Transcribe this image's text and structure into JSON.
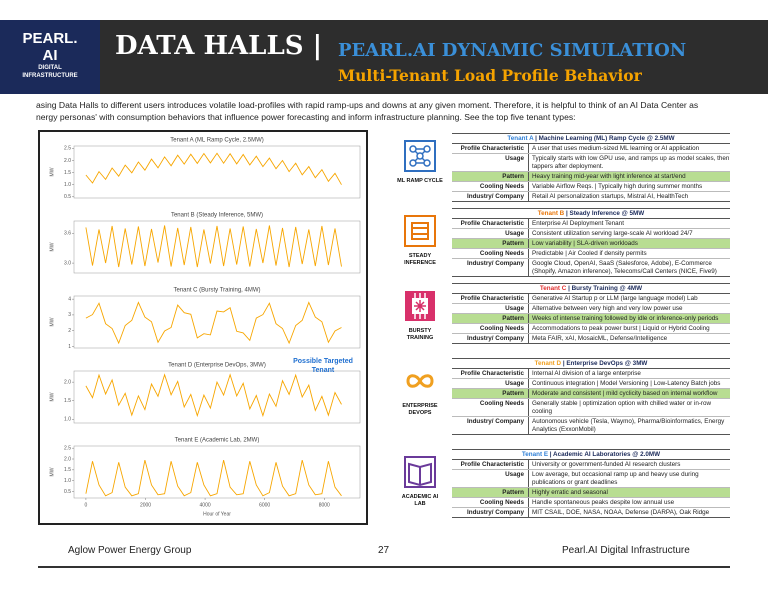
{
  "header": {
    "logo_line1": "PEARL.",
    "logo_line2": "AI",
    "logo_line3": "DIGITAL",
    "logo_line4": "INFRASTRUCTURE",
    "title": "DATA HALLS |",
    "title_right": "PEARL.AI DYNAMIC SIMULATION",
    "subtitle": "Multi-Tenant Load Profile Behavior"
  },
  "intro": [
    "asing Data Halls to different users introduces volatile load-profiles with rapid ramp-ups and downs at any given moment. Therefore, it is helpful to think of an AI Data Center as",
    "nergy personas' with consumption behaviors that influence power forecasting and inform infrastructure planning. See the top five tenant types:"
  ],
  "chart_data": [
    {
      "type": "line",
      "title": "Tenant A (ML Ramp Cycle, 2.5MW)",
      "ylabel": "MW",
      "color": "#f7a600",
      "xlim": [
        -400,
        9200
      ],
      "ylim": [
        0.45,
        2.6
      ],
      "yticks": [
        0.5,
        {
          "value": 1.0,
          "label": "1.0"
        },
        1.5,
        {
          "value": 2.0,
          "label": "2.0"
        },
        2.5
      ],
      "x": [
        0,
        220,
        440,
        660,
        880,
        1100,
        1320,
        1540,
        1760,
        1980,
        2200,
        2420,
        2640,
        2860,
        3080,
        3300,
        3520,
        3740,
        3960,
        4180,
        4400,
        4620,
        4840,
        5060,
        5280,
        5500,
        5720,
        5940,
        6160,
        6380,
        6600,
        6820,
        7040,
        7260,
        7480,
        7700,
        7920,
        8140,
        8360,
        8580
      ],
      "values": [
        1.4,
        1.07,
        1.54,
        1.22,
        1.69,
        1.35,
        1.81,
        1.49,
        1.94,
        1.6,
        2.06,
        1.7,
        2.15,
        1.78,
        2.22,
        1.85,
        2.26,
        1.88,
        2.29,
        1.9,
        2.3,
        1.89,
        2.28,
        1.86,
        2.25,
        1.82,
        2.18,
        1.75,
        2.1,
        1.66,
        2.0,
        1.54,
        1.89,
        1.41,
        1.75,
        1.29,
        1.62,
        1.14,
        1.47,
        1.0
      ]
    },
    {
      "type": "line",
      "title": "Tenant B (Steady Inference, 5MW)",
      "ylabel": "MW",
      "color": "#f7a600",
      "xlim": [
        -400,
        9200
      ],
      "ylim": [
        2.8,
        3.85
      ],
      "yticks": [
        {
          "value": 3.0,
          "label": "3.0"
        },
        3.6
      ],
      "x": [
        0,
        220,
        440,
        660,
        880,
        1100,
        1320,
        1540,
        1760,
        1980,
        2200,
        2420,
        2640,
        2860,
        3080,
        3300,
        3520,
        3740,
        3960,
        4180,
        4400,
        4620,
        4840,
        5060,
        5280,
        5500,
        5720,
        5940,
        6160,
        6380,
        6600,
        6820,
        7040,
        7260,
        7480,
        7700,
        7920,
        8140,
        8360,
        8580
      ],
      "values": [
        3.72,
        2.95,
        3.68,
        3.0,
        3.75,
        2.92,
        3.7,
        2.97,
        3.74,
        2.94,
        3.69,
        3.01,
        3.76,
        2.93,
        3.71,
        2.96,
        3.73,
        2.92,
        3.68,
        2.99,
        3.75,
        2.94,
        3.7,
        2.97,
        3.74,
        2.93,
        3.69,
        3.0,
        3.76,
        2.95,
        3.71,
        2.92,
        3.73,
        2.98,
        3.68,
        2.94,
        3.75,
        2.96,
        3.7,
        2.93
      ]
    },
    {
      "type": "line",
      "title": "Tenant C (Bursty Training, 4MW)",
      "ylabel": "MW",
      "color": "#f7a600",
      "xlim": [
        -400,
        9200
      ],
      "ylim": [
        0.9,
        4.2
      ],
      "yticks": [
        1,
        2,
        3,
        4
      ],
      "x": [
        0,
        220,
        440,
        660,
        880,
        1100,
        1320,
        1540,
        1760,
        1980,
        2200,
        2420,
        2640,
        2860,
        3080,
        3300,
        3520,
        3740,
        3960,
        4180,
        4400,
        4620,
        4840,
        5060,
        5280,
        5500,
        5720,
        5940,
        6160,
        6380,
        6600,
        6820,
        7040,
        7260,
        7480,
        7700,
        7920,
        8140,
        8360,
        8580
      ],
      "values": [
        2.8,
        3.02,
        3.74,
        2.44,
        2.14,
        1.21,
        2.33,
        2.65,
        3.79,
        2.86,
        2.56,
        1.26,
        1.98,
        2.2,
        3.62,
        3.14,
        3.04,
        1.54,
        1.81,
        1.73,
        3.25,
        3.19,
        3.46,
        1.96,
        1.86,
        1.38,
        2.8,
        3.02,
        3.74,
        2.44,
        2.14,
        1.21,
        2.33,
        2.65,
        3.79,
        2.86,
        2.56,
        1.26,
        1.98,
        2.2
      ]
    },
    {
      "type": "line",
      "title": "Tenant D (Enterprise DevOps, 3MW)",
      "ylabel": "MW",
      "color": "#f7a600",
      "annotation": "Possible Targeted Tenant",
      "xlim": [
        -400,
        9200
      ],
      "ylim": [
        0.9,
        2.3
      ],
      "yticks": [
        {
          "value": 1.0,
          "label": "1.0"
        },
        1.5,
        {
          "value": 2.0,
          "label": "2.0"
        }
      ],
      "x": [
        0,
        220,
        440,
        660,
        880,
        1100,
        1320,
        1540,
        1760,
        1980,
        2200,
        2420,
        2640,
        2860,
        3080,
        3300,
        3520,
        3740,
        3960,
        4180,
        4400,
        4620,
        4840,
        5060,
        5280,
        5500,
        5720,
        5940,
        6160,
        6380,
        6600,
        6820,
        7040,
        7260,
        7480,
        7700,
        7920,
        8140,
        8360,
        8580
      ],
      "values": [
        1.9,
        1.58,
        2.19,
        1.68,
        2.06,
        1.38,
        1.7,
        1.11,
        1.63,
        1.26,
        1.95,
        1.62,
        2.2,
        1.66,
        2.02,
        1.33,
        1.67,
        1.1,
        1.65,
        1.3,
        2.0,
        1.65,
        2.2,
        1.63,
        1.97,
        1.28,
        1.64,
        1.1,
        1.68,
        1.35,
        2.04,
        1.67,
        2.19,
        1.6,
        1.92,
        1.24,
        1.62,
        1.11,
        1.72,
        1.4
      ]
    },
    {
      "type": "line",
      "title": "Tenant E (Academic Lab, 2MW)",
      "ylabel": "MW",
      "color": "#f7a600",
      "xlabel": "Hour of Year",
      "xlim": [
        -400,
        9200
      ],
      "xticks": [
        0,
        2000,
        4000,
        6000,
        8000
      ],
      "ylim": [
        0.2,
        2.6
      ],
      "yticks": [
        0.5,
        {
          "value": 1.0,
          "label": "1.0"
        },
        1.5,
        {
          "value": 2.0,
          "label": "2.0"
        },
        2.5
      ],
      "x": [
        0,
        220,
        440,
        660,
        880,
        1100,
        1320,
        1540,
        1760,
        1980,
        2200,
        2420,
        2640,
        2860,
        3080,
        3300,
        3520,
        3740,
        3960,
        4180,
        4400,
        4620,
        4840,
        5060,
        5280,
        5500,
        5720,
        5940,
        6160,
        6380,
        6600,
        6820,
        7040,
        7260,
        7480,
        7700,
        7920,
        8140,
        8360,
        8580
      ],
      "values": [
        0.4,
        1.9,
        0.8,
        0.3,
        0.45,
        1.85,
        0.7,
        0.3,
        0.4,
        1.95,
        0.8,
        0.35,
        0.4,
        1.9,
        0.75,
        0.3,
        0.45,
        1.85,
        0.8,
        0.3,
        0.4,
        1.95,
        0.7,
        0.35,
        0.4,
        1.9,
        0.8,
        0.3,
        0.45,
        1.85,
        0.75,
        0.3,
        0.4,
        1.95,
        0.8,
        0.35,
        0.4,
        1.9,
        0.7,
        0.3
      ]
    }
  ],
  "tenants": [
    {
      "icon_label": "ML RAMP CYCLE",
      "tag": "Tenant A",
      "tag_color": "#2f7fd6",
      "title": " | Machine Learning (ML) Ramp Cycle @ 2.5MW",
      "rows": [
        [
          "Profile Characteristic",
          "A user that uses medium-sized ML learning or AI application"
        ],
        [
          "Usage",
          "Typically starts with low GPU use, and ramps up as model scales, then tappers after deployment."
        ],
        [
          "Pattern",
          "Heavy training mid-year with light inference at start/end"
        ],
        [
          "Cooling Needs",
          "Variable Airflow Reqs. | Typically high during summer months"
        ],
        [
          "Industry/ Company",
          "Retail AI personalization startups, Mistral AI, HealthTech"
        ]
      ]
    },
    {
      "icon_label": "STEADY INFERENCE",
      "tag": "Tenant B",
      "tag_color": "#e8760a",
      "title": " | Steady Inference @ 5MW",
      "rows": [
        [
          "Profile Characteristic",
          "Enterprise AI Deployment Tenant"
        ],
        [
          "Usage",
          "Consistent utilization serving large-scale AI workload 24/7"
        ],
        [
          "Pattern",
          "Low variability | SLA-driven workloads"
        ],
        [
          "Cooling Needs",
          "Predictable | Air Cooled if density permits"
        ],
        [
          "Industry/ Company",
          "Google Cloud, OpenAI, SaaS (Salesforce, Adobe), E-Commerce (Shopify, Amazon inference), Telecoms/Call Centers (NICE, Five9)"
        ]
      ]
    },
    {
      "icon_label": "BURSTY TRAINING",
      "tag": "Tenant C",
      "tag_color": "#e03030",
      "title": " | Bursty Training @ 4MW",
      "rows": [
        [
          "Profile Characteristic",
          "Generative AI Startup p or LLM (large language model) Lab"
        ],
        [
          "Usage",
          "Alternative between very high and very low power use"
        ],
        [
          "Pattern",
          "Weeks of intense training followed by idle or inference-only periods"
        ],
        [
          "Cooling Needs",
          "Accommodations to peak power burst | Liquid or Hybrid Cooling"
        ],
        [
          "Industry/ Company",
          "Meta FAIR, xAI, MosaicML, Defense/Intelligence"
        ]
      ]
    },
    {
      "icon_label": "ENTERPRISE DEVOPS",
      "tag": "Tenant D",
      "tag_color": "#f0a020",
      "title": " | Enterprise DevOps @ 3MW",
      "rows": [
        [
          "Profile Characteristic",
          "Internal AI division of a large enterprise"
        ],
        [
          "Usage",
          "Continuous integration | Model Versioning | Low-Latency Batch jobs"
        ],
        [
          "Pattern",
          "Moderate and consistent | mild cyclicity based on internal workflow"
        ],
        [
          "Cooling Needs",
          "Generally stable | optimization option with chilled water or in-row cooling"
        ],
        [
          "Industry/ Company",
          "Autonomous vehicle (Tesla, Waymo), Pharma/Bioinformatics, Energy Analytics (ExxonMobil)"
        ]
      ]
    },
    {
      "icon_label": "ACADEMIC AI LAB",
      "tag": "Tenant E",
      "tag_color": "#2f7fd6",
      "title": " | Academic AI Laboratories @ 2.0MW",
      "rows": [
        [
          "Profile Characteristic",
          "University or government-funded AI research clusters"
        ],
        [
          "Usage",
          "Low average, but occasional ramp up and heavy use during publications or grant deadlines"
        ],
        [
          "Pattern",
          "Highly erratic and seasonal"
        ],
        [
          "Cooling Needs",
          "Handle spontaneous peaks despite low annual use"
        ],
        [
          "Industry/ Company",
          "MIT CSAIL, DOE, NASA, NOAA, Defense (DARPA), Oak Ridge"
        ]
      ]
    }
  ],
  "footer": {
    "left": "Aglow Power Energy Group",
    "page": "27",
    "right": "Pearl.AI Digital Infrastructure"
  }
}
